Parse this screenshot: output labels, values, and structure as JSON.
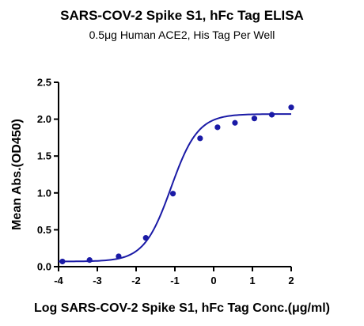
{
  "chart_data": {
    "type": "scatter",
    "title": "SARS-COV-2 Spike S1, hFc Tag ELISA",
    "subtitle": "0.5μg Human ACE2, His Tag Per Well",
    "xlabel": "Log SARS-COV-2 Spike S1, hFc Tag Conc.(μg/ml)",
    "ylabel": "Mean Abs.(OD450)",
    "xlim": [
      -4,
      2
    ],
    "ylim": [
      0,
      2.5
    ],
    "x_ticks": [
      "-4",
      "-3",
      "-2",
      "-1",
      "0",
      "1",
      "2"
    ],
    "y_ticks": [
      "0.0",
      "0.5",
      "1.0",
      "1.5",
      "2.0",
      "2.5"
    ],
    "grid": false,
    "colors": {
      "points": "#1a1aa6",
      "curve": "#1a1aa6",
      "axis": "#000000"
    },
    "series": [
      {
        "x": [
          -3.9,
          -3.2,
          -2.45,
          -1.75,
          -1.05,
          -0.35,
          0.1,
          0.55,
          1.05,
          1.5,
          2.0
        ],
        "values": [
          0.07,
          0.09,
          0.14,
          0.39,
          0.99,
          1.74,
          1.89,
          1.95,
          2.01,
          2.06,
          2.16
        ]
      }
    ],
    "fit": {
      "model": "4PL",
      "bottom": 0.07,
      "top": 2.07,
      "ec50_log": -1.1,
      "hill": 1.25
    }
  }
}
